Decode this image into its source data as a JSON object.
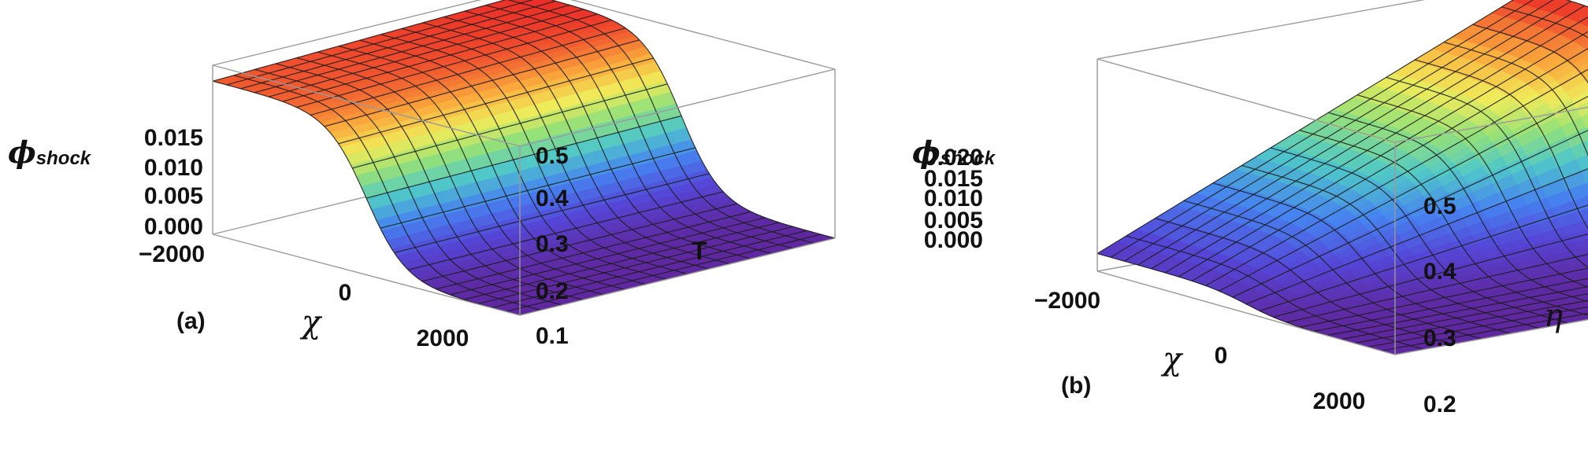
{
  "chart_data": [
    {
      "type": "surface3d",
      "panel_label": "(a)",
      "z_label": "ϕ",
      "z_label_sub": "shock",
      "x_label": "χ",
      "y_label": "T",
      "x_ticks": [
        "−2000",
        "0",
        "2000"
      ],
      "y_ticks": [
        "0.1",
        "0.2",
        "0.3",
        "0.4",
        "0.5"
      ],
      "z_ticks": [
        "0.000",
        "0.005",
        "0.010",
        "0.015"
      ],
      "x_range": [
        -3000,
        3000
      ],
      "y_range": [
        0.1,
        0.5
      ],
      "z_range": [
        0.0,
        0.016
      ],
      "z_amplitude": [
        0.0145,
        0.0155
      ],
      "grid": true,
      "colormap": "rainbow"
    },
    {
      "type": "surface3d",
      "panel_label": "(b)",
      "z_label": "ϕ",
      "z_label_sub": "shock",
      "x_label": "χ",
      "y_label": "η",
      "x_ticks": [
        "−2000",
        "0",
        "2000"
      ],
      "y_ticks": [
        "0.2",
        "0.3",
        "0.4",
        "0.5"
      ],
      "z_ticks": [
        "0.000",
        "0.005",
        "0.010",
        "0.015",
        "0.020"
      ],
      "x_range": [
        -3000,
        3000
      ],
      "y_range": [
        0.2,
        0.5
      ],
      "z_range": [
        0.0,
        0.024
      ],
      "z_amplitude": [
        0.002,
        0.023
      ],
      "grid": true,
      "colormap": "rainbow"
    }
  ]
}
